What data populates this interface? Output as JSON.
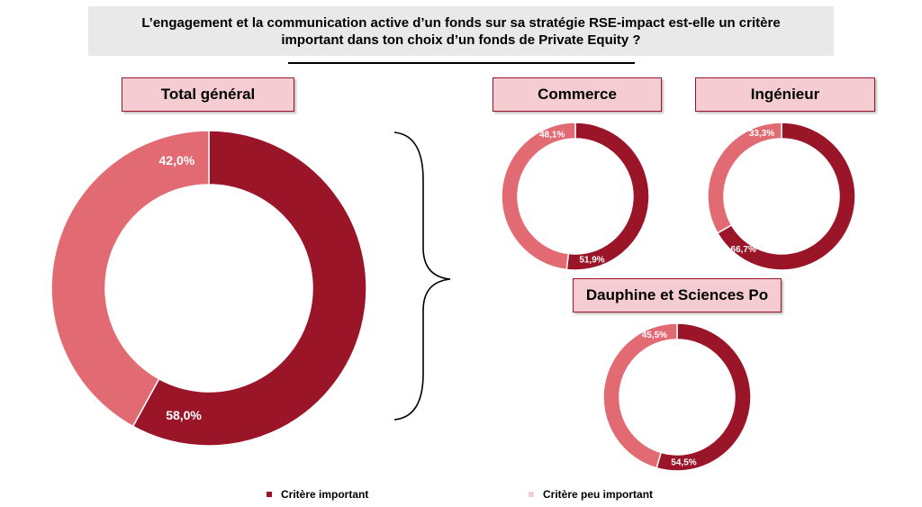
{
  "title": {
    "line1": "L’engagement et la communication active d’un fonds sur sa stratégie RSE-impact est-elle un critère",
    "line2": "important dans ton choix d’un fonds de Private Equity ?"
  },
  "colors": {
    "important": "#9b1528",
    "peu_important": "#e26a73",
    "label_bg": "#f5ccd2",
    "label_border": "#9b1528"
  },
  "chart_data": [
    {
      "type": "pie",
      "title": "Total général",
      "categories": [
        "Critère important",
        "Critère peu important"
      ],
      "values": [
        58.0,
        42.0
      ],
      "labels": [
        "58,0%",
        "42,0%"
      ]
    },
    {
      "type": "pie",
      "title": "Commerce",
      "categories": [
        "Critère important",
        "Critère peu important"
      ],
      "values": [
        51.9,
        48.1
      ],
      "labels": [
        "51,9%",
        "48,1%"
      ]
    },
    {
      "type": "pie",
      "title": "Ingénieur",
      "categories": [
        "Critère important",
        "Critère peu important"
      ],
      "values": [
        66.7,
        33.3
      ],
      "labels": [
        "66,7%",
        "33,3%"
      ]
    },
    {
      "type": "pie",
      "title": "Dauphine et Sciences Po",
      "categories": [
        "Critère important",
        "Critère peu important"
      ],
      "values": [
        54.5,
        45.5
      ],
      "labels": [
        "54,5%",
        "45,5%"
      ]
    }
  ],
  "legend": [
    {
      "label": "Critère important"
    },
    {
      "label": "Critère peu important"
    }
  ]
}
